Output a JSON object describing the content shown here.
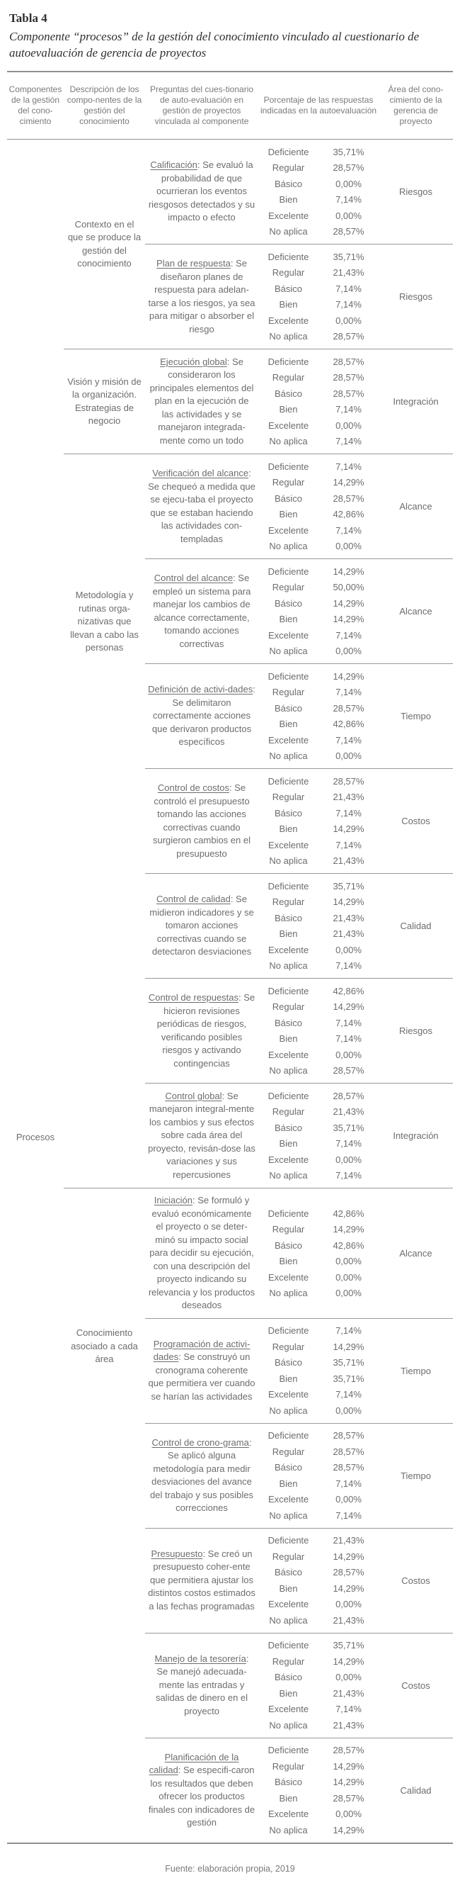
{
  "title": "Tabla 4",
  "subtitle": "Componente “procesos” de la gestión del conocimiento vinculado al cuestionario de autoevaluación de gerencia de proyectos",
  "columns": [
    "Componentes de la gestión del cono-cimiento",
    "Descripción de los compo-nentes de la gestión del conocimiento",
    "Preguntas del cues-tionario de auto-evaluación en gestión de proyectos vinculada al componente",
    "Porcentaje de las respuestas indicadas en la autoevaluación",
    "Área del cono-cimiento de la gerencia de proyecto"
  ],
  "component": "Procesos",
  "rating_labels": [
    "Deficiente",
    "Regular",
    "Básico",
    "Bien",
    "Excelente",
    "No aplica"
  ],
  "groups": [
    {
      "description": "Contexto en el que se produce la gestión del conocimiento",
      "questions": [
        {
          "keyword": "Calificación",
          "text": ": Se evaluó la probabilidad de que ocurrieran los eventos riesgosos detectados y su impacto o efecto",
          "area": "Riesgos",
          "values": [
            "35,71%",
            "28,57%",
            "0,00%",
            "7,14%",
            "0,00%",
            "28,57%"
          ]
        },
        {
          "keyword": "Plan de respuesta",
          "text": ": Se diseñaron planes de respuesta para adelan-tarse a los riesgos, ya sea para mitigar o absorber el riesgo",
          "area": "Riesgos",
          "values": [
            "35,71%",
            "21,43%",
            "7,14%",
            "7,14%",
            "0,00%",
            "28,57%"
          ]
        }
      ]
    },
    {
      "description": "Visión y misión de la organización. Estrategias de negocio",
      "questions": [
        {
          "keyword": "Ejecución global",
          "text": ": Se consideraron los principales elementos del plan en la ejecución de las actividades y se manejaron integrada-mente como un todo",
          "area": "Integración",
          "values": [
            "28,57%",
            "28,57%",
            "28,57%",
            "7,14%",
            "0,00%",
            "7,14%"
          ]
        }
      ]
    },
    {
      "description": "Metodología y rutinas orga-nizativas que llevan a cabo las personas",
      "questions": [
        {
          "keyword": "Verificación del alcance",
          "text": ": Se chequeó a medida que se ejecu-taba el proyecto que se estaban haciendo las actividades con-templadas",
          "area": "Alcance",
          "values": [
            "7,14%",
            "14,29%",
            "28,57%",
            "42,86%",
            "7,14%",
            "0,00%"
          ]
        },
        {
          "keyword": "Control del alcance",
          "text": ": Se empleó un sistema para manejar los cambios de alcance correctamente, tomando acciones correctivas",
          "area": "Alcance",
          "values": [
            "14,29%",
            "50,00%",
            "14,29%",
            "14,29%",
            "7,14%",
            "0,00%"
          ]
        },
        {
          "keyword": "Definición de activi-dades",
          "text": ": Se delimitaron correctamente acciones que derivaron productos específicos",
          "area": "Tiempo",
          "values": [
            "14,29%",
            "7,14%",
            "28,57%",
            "42,86%",
            "7,14%",
            "0,00%"
          ]
        },
        {
          "keyword": "Control de costos",
          "text": ": Se controló el presupuesto tomando las acciones correctivas cuando surgieron cambios en el presupuesto",
          "area": "Costos",
          "values": [
            "28,57%",
            "21,43%",
            "7,14%",
            "14,29%",
            "7,14%",
            "21,43%"
          ]
        },
        {
          "keyword": "Control de calidad",
          "text": ": Se midieron indicadores y se tomaron acciones correctivas cuando se detectaron desviaciones",
          "area": "Calidad",
          "values": [
            "35,71%",
            "14,29%",
            "21,43%",
            "21,43%",
            "0,00%",
            "7,14%"
          ]
        },
        {
          "keyword": "Control de respuestas",
          "text": ": Se hicieron revisiones periódicas de riesgos, verificando posibles riesgos y activando contingencias",
          "area": "Riesgos",
          "values": [
            "42,86%",
            "14,29%",
            "7,14%",
            "7,14%",
            "0,00%",
            "28,57%"
          ]
        },
        {
          "keyword": "Control global",
          "text": ": Se manejaron integral-mente los cambios y sus efectos sobre cada área del proyecto, revisán-dose las variaciones y sus repercusiones",
          "area": "Integración",
          "values": [
            "28,57%",
            "21,43%",
            "35,71%",
            "7,14%",
            "0,00%",
            "7,14%"
          ]
        }
      ]
    },
    {
      "description": "Conocimiento asociado a cada área",
      "questions": [
        {
          "keyword": "Iniciación",
          "text": ": Se formuló y evaluó económicamente el proyecto o se deter-minó su impacto social para decidir su ejecución, con una descripción del proyecto indicando su relevancia y los productos deseados",
          "area": "Alcance",
          "values": [
            "42,86%",
            "14,29%",
            "42,86%",
            "0,00%",
            "0,00%",
            "0,00%"
          ]
        },
        {
          "keyword": "Programación de activi-dades",
          "text": ": Se construyó un cronograma coherente que permitiera ver cuando se harían las actividades",
          "area": "Tiempo",
          "values": [
            "7,14%",
            "14,29%",
            "35,71%",
            "35,71%",
            "7,14%",
            "0,00%"
          ]
        },
        {
          "keyword": "Control de crono-grama",
          "text": ": Se aplicó alguna metodología para medir desviaciones del avance del trabajo y sus posibles correcciones",
          "area": "Tiempo",
          "values": [
            "28,57%",
            "28,57%",
            "28,57%",
            "7,14%",
            "0,00%",
            "7,14%"
          ]
        },
        {
          "keyword": "Presupuesto",
          "text": ": Se creó un presupuesto coher-ente que permitiera ajustar los distintos costos estimados a las fechas programadas",
          "area": "Costos",
          "values": [
            "21,43%",
            "14,29%",
            "28,57%",
            "14,29%",
            "0,00%",
            "21,43%"
          ]
        },
        {
          "keyword": "Manejo de la tesorería",
          "text": ": Se manejó adecuada-mente las entradas y salidas de dinero en el proyecto",
          "area": "Costos",
          "values": [
            "35,71%",
            "14,29%",
            "0,00%",
            "21,43%",
            "7,14%",
            "21,43%"
          ]
        },
        {
          "keyword": "Planificación de la calidad",
          "text": ": Se especifi-caron los resultados que deben ofrecer los productos finales con indicadores de gestión",
          "area": "Calidad",
          "values": [
            "28,57%",
            "14,29%",
            "14,29%",
            "28,57%",
            "0,00%",
            "14,29%"
          ]
        }
      ]
    }
  ],
  "source": "Fuente: elaboración propia, 2019",
  "colors": {
    "text": "#6d6d6d",
    "title_text": "#2f2f2f",
    "rule": "#8f8f8f"
  }
}
